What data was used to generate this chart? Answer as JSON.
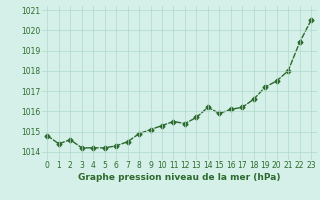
{
  "x": [
    0,
    1,
    2,
    3,
    4,
    5,
    6,
    7,
    8,
    9,
    10,
    11,
    12,
    13,
    14,
    15,
    16,
    17,
    18,
    19,
    20,
    21,
    22,
    23
  ],
  "y": [
    1014.8,
    1014.4,
    1014.6,
    1014.2,
    1014.2,
    1014.2,
    1014.3,
    1014.5,
    1014.9,
    1015.1,
    1015.3,
    1015.5,
    1015.4,
    1015.7,
    1016.2,
    1015.9,
    1016.1,
    1016.2,
    1016.6,
    1017.2,
    1017.5,
    1018.0,
    1019.4,
    1020.5
  ],
  "line_color": "#2d6a2d",
  "marker": "D",
  "marker_size": 2.5,
  "linewidth": 1.0,
  "bg_color": "#d4f0e8",
  "grid_color": "#b0d8cc",
  "xlabel": "Graphe pression niveau de la mer (hPa)",
  "xlabel_color": "#2d6a2d",
  "xlabel_fontsize": 6.5,
  "tick_color": "#2d6a2d",
  "tick_fontsize": 5.5,
  "ylim": [
    1013.6,
    1021.2
  ],
  "yticks": [
    1014,
    1015,
    1016,
    1017,
    1018,
    1019,
    1020,
    1021
  ],
  "xticks": [
    0,
    1,
    2,
    3,
    4,
    5,
    6,
    7,
    8,
    9,
    10,
    11,
    12,
    13,
    14,
    15,
    16,
    17,
    18,
    19,
    20,
    21,
    22,
    23
  ],
  "xlim": [
    -0.5,
    23.5
  ]
}
